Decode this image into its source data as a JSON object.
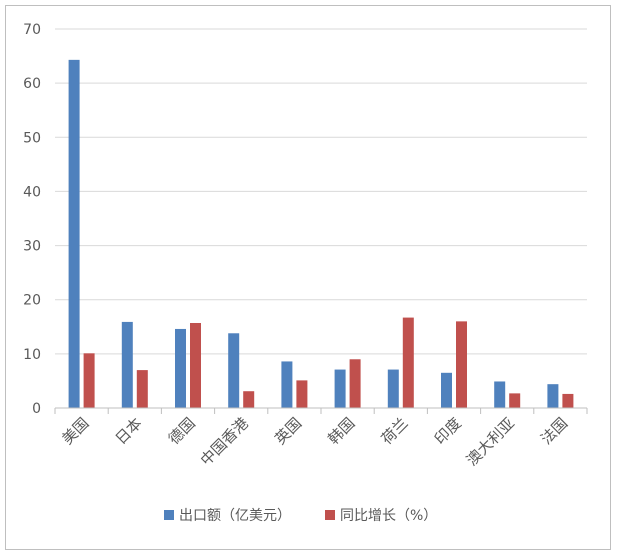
{
  "chart_data": {
    "type": "bar",
    "categories": [
      "美国",
      "日本",
      "德国",
      "中国香港",
      "英国",
      "韩国",
      "荷兰",
      "印度",
      "澳大利亚",
      "法国"
    ],
    "series": [
      {
        "name": "出口额（亿美元）",
        "color": "#4f81bd",
        "values": [
          64.3,
          15.9,
          14.6,
          13.8,
          8.6,
          7.1,
          7.1,
          6.5,
          4.9,
          4.4
        ]
      },
      {
        "name": "同比增长（%）",
        "color": "#c0504d",
        "values": [
          10.1,
          7.0,
          15.7,
          3.1,
          5.1,
          9.0,
          16.7,
          16.0,
          2.7,
          2.6
        ]
      }
    ],
    "yticks": [
      0,
      10,
      20,
      30,
      40,
      50,
      60,
      70
    ],
    "ylim": [
      0,
      70
    ],
    "grid": true,
    "legend_position": "bottom"
  }
}
